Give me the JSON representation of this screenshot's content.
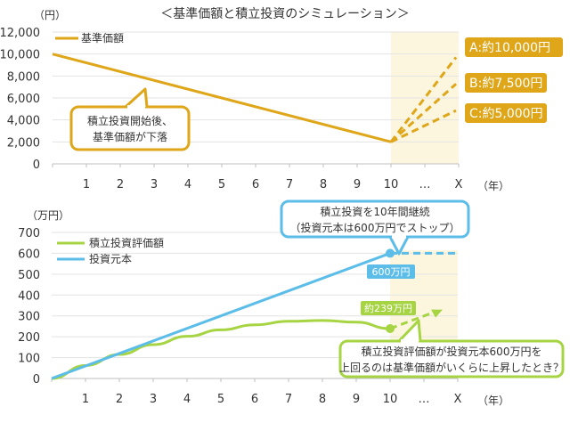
{
  "title": "＜基準価額と積立投資のシミュレーション＞",
  "colors": {
    "gold": "#dea618",
    "blue": "#5bbde8",
    "green": "#a6d443",
    "shade": "#fdf6df",
    "grid": "#d9d9d9"
  },
  "chart_data": [
    {
      "type": "line",
      "yunit": "（円）",
      "xunit": "（年）",
      "ylim": [
        0,
        12000
      ],
      "yticks": [
        "0",
        "2,000",
        "4,000",
        "6,000",
        "8,000",
        "10,000",
        "12,000"
      ],
      "xticks": [
        "1",
        "2",
        "3",
        "4",
        "5",
        "6",
        "7",
        "8",
        "9",
        "10",
        "…",
        "X"
      ],
      "grid": true,
      "legend_position": "top-left",
      "series": [
        {
          "name": "基準価額",
          "x": [
            0,
            10
          ],
          "values": [
            10000,
            2000
          ]
        }
      ],
      "scenarios": [
        {
          "label": "A:約10,000円",
          "value": 10000
        },
        {
          "label": "B:約7,500円",
          "value": 7500
        },
        {
          "label": "C:約5,000円",
          "value": 5000
        }
      ],
      "callout": [
        "積立投資開始後、",
        "基準価額が下落"
      ]
    },
    {
      "type": "line",
      "yunit": "（万円）",
      "xunit": "（年）",
      "ylim": [
        0,
        700
      ],
      "yticks": [
        "0",
        "100",
        "200",
        "300",
        "400",
        "500",
        "600",
        "700"
      ],
      "xticks": [
        "1",
        "2",
        "3",
        "4",
        "5",
        "6",
        "7",
        "8",
        "9",
        "10",
        "…",
        "X"
      ],
      "grid": true,
      "legend_position": "top-left",
      "series": [
        {
          "name": "積立投資評価額",
          "x": [
            0,
            1,
            2,
            3,
            4,
            5,
            6,
            7,
            8,
            9,
            10
          ],
          "values": [
            0,
            62,
            115,
            162,
            202,
            233,
            257,
            274,
            278,
            270,
            239
          ]
        },
        {
          "name": "投資元本",
          "x": [
            0,
            10
          ],
          "values": [
            0,
            600
          ]
        }
      ],
      "point_labels": {
        "principal": "600万円",
        "valuation": "約239万円"
      },
      "callout_top": [
        "積立投資を10年間継続",
        "（投資元本は600万円でストップ）"
      ],
      "callout_bottom": [
        "積立投資評価額が投資元本600万円を",
        "上回るのは基準価額がいくらに上昇したとき？"
      ]
    }
  ]
}
